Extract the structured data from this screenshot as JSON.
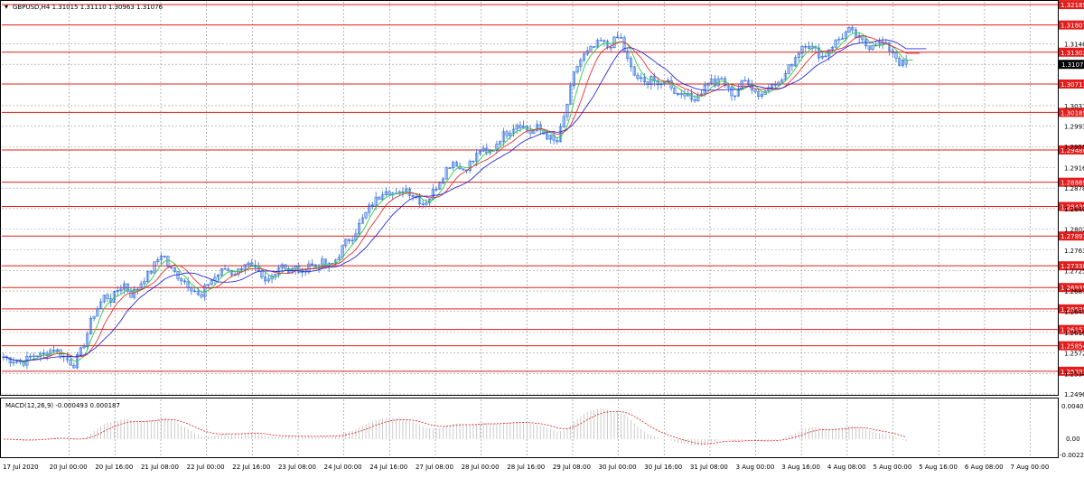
{
  "window": {
    "symbol_header": "GBPUSD,H4  1.31015 1.31110 1.30963 1.31076",
    "dropdown_glyph": "▾"
  },
  "indicator": {
    "name": "MACD(12,26,9) -0.000493 0.000187",
    "scale_top": "0.004009",
    "scale_zero": "0.00",
    "scale_bottom": "-0.00223"
  },
  "colors": {
    "background": "#ffffff",
    "grid": "#9a9a9a",
    "candles": "#2f6fdc",
    "level_line": "#e21d1d",
    "level_label_bg": "#e21d1d",
    "level_label_text": "#ffffff",
    "price_label_bg": "#000000",
    "ma_fast": "#2ecc40",
    "ma_mid": "#e23232",
    "ma_slow": "#2b2bd6",
    "macd_hist": "#c0c0c0",
    "macd_signal": "#e21d1d"
  },
  "chart_data": {
    "type": "candlestick",
    "symbol": "GBPUSD",
    "timeframe": "H4",
    "ohlc": {
      "open": 1.31015,
      "high": 1.3111,
      "low": 1.30963,
      "close": 1.31076
    },
    "current_price": "1.31076",
    "ylim": [
      1.2496,
      1.3222
    ],
    "price_ticks": [
      "1.31460",
      "1.31076",
      "1.30310",
      "1.29930",
      "1.29550",
      "1.29160",
      "1.28780",
      "1.28400",
      "1.28020",
      "1.27630",
      "1.27250",
      "1.26870",
      "1.26490",
      "1.26100",
      "1.25720",
      "1.25340",
      "1.24960"
    ],
    "horizontal_levels": [
      "1.32185",
      "1.31807",
      "1.31302",
      "1.30711",
      "1.30185",
      "1.29488",
      "1.28889",
      "1.28439",
      "1.27891",
      "1.27338",
      "1.26935",
      "1.26539",
      "1.26157",
      "1.25854",
      "1.25382"
    ],
    "time_labels": [
      "17 Jul 2020",
      "20 Jul 00:00",
      "20 Jul 16:00",
      "21 Jul 08:00",
      "22 Jul 00:00",
      "22 Jul 16:00",
      "23 Jul 08:00",
      "24 Jul 00:00",
      "24 Jul 16:00",
      "27 Jul 08:00",
      "28 Jul 00:00",
      "28 Jul 16:00",
      "29 Jul 08:00",
      "30 Jul 00:00",
      "30 Jul 16:00",
      "31 Jul 08:00",
      "3 Aug 00:00",
      "3 Aug 16:00",
      "4 Aug 08:00",
      "5 Aug 00:00",
      "5 Aug 16:00",
      "6 Aug 08:00",
      "7 Aug 00:00"
    ],
    "close_path": [
      1.2565,
      1.256,
      1.2558,
      1.2555,
      1.2562,
      1.257,
      1.2566,
      1.2575,
      1.258,
      1.257,
      1.256,
      1.255,
      1.257,
      1.26,
      1.264,
      1.266,
      1.268,
      1.267,
      1.269,
      1.27,
      1.268,
      1.269,
      1.271,
      1.272,
      1.274,
      1.276,
      1.273,
      1.272,
      1.271,
      1.27,
      1.269,
      1.267,
      1.27,
      1.271,
      1.272,
      1.273,
      1.272,
      1.2725,
      1.274,
      1.273,
      1.272,
      1.27,
      1.271,
      1.273,
      1.274,
      1.272,
      1.273,
      1.272,
      1.274,
      1.273,
      1.274,
      1.273,
      1.274,
      1.276,
      1.278,
      1.279,
      1.281,
      1.283,
      1.285,
      1.286,
      1.288,
      1.287,
      1.286,
      1.288,
      1.287,
      1.286,
      1.285,
      1.286,
      1.288,
      1.29,
      1.292,
      1.293,
      1.291,
      1.292,
      1.293,
      1.295,
      1.294,
      1.295,
      1.297,
      1.298,
      1.299,
      1.3,
      1.299,
      1.298,
      1.299,
      1.298,
      1.297,
      1.296,
      1.3,
      1.305,
      1.31,
      1.312,
      1.313,
      1.314,
      1.315,
      1.314,
      1.315,
      1.316,
      1.312,
      1.309,
      1.308,
      1.307,
      1.309,
      1.306,
      1.308,
      1.307,
      1.305,
      1.306,
      1.304,
      1.305,
      1.306,
      1.308,
      1.307,
      1.308,
      1.306,
      1.305,
      1.307,
      1.308,
      1.306,
      1.305,
      1.306,
      1.308,
      1.307,
      1.309,
      1.311,
      1.313,
      1.315,
      1.314,
      1.313,
      1.312,
      1.314,
      1.315,
      1.316,
      1.317,
      1.316,
      1.315,
      1.314,
      1.315,
      1.3145,
      1.314,
      1.313,
      1.311,
      1.3108
    ]
  }
}
